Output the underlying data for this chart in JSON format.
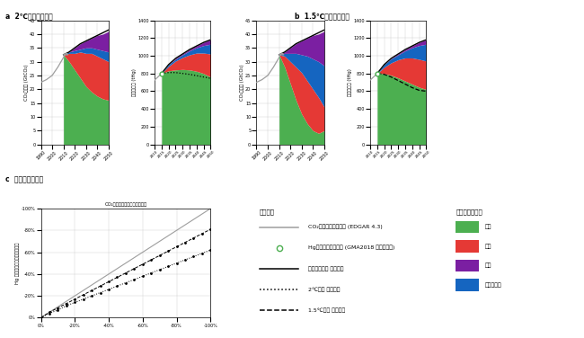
{
  "panel_a_title": "a  2℃目標シナリオ",
  "panel_b_title": "b  1.5℃目標シナリオ",
  "panel_c_title": "c  共便益削減効果",
  "panel_c_subtitle": "CO₂削減率（リファレンス比）",
  "co2_hist_years": [
    1990,
    1995,
    2000,
    2005,
    2010,
    2011,
    2012,
    2013,
    2014
  ],
  "co2_hist_vals": [
    22.5,
    23.5,
    25.0,
    28.0,
    31.5,
    32.5,
    33.0,
    33.0,
    32.5
  ],
  "co2_proj_years": [
    2010,
    2015,
    2020,
    2025,
    2030,
    2035,
    2040,
    2045,
    2050
  ],
  "co2_ref_vals": [
    32.5,
    33.5,
    35.0,
    36.5,
    37.5,
    38.5,
    39.5,
    40.5,
    41.5
  ],
  "co2_2deg_green": [
    32.5,
    30.0,
    27.0,
    24.0,
    21.0,
    19.0,
    17.5,
    16.5,
    16.0
  ],
  "co2_2deg_red": [
    32.5,
    33.0,
    33.0,
    33.5,
    33.0,
    33.0,
    32.0,
    31.0,
    30.0
  ],
  "co2_2deg_blue": [
    32.5,
    33.5,
    34.0,
    34.5,
    35.0,
    35.0,
    34.5,
    34.0,
    33.5
  ],
  "co2_2deg_purple": [
    32.5,
    33.5,
    35.0,
    36.5,
    37.5,
    38.5,
    39.5,
    40.0,
    41.0
  ],
  "co2_15deg_green": [
    32.5,
    28.0,
    22.0,
    16.0,
    11.0,
    7.5,
    5.0,
    4.0,
    5.0
  ],
  "co2_15deg_red": [
    32.5,
    32.0,
    30.0,
    28.0,
    26.0,
    23.0,
    20.0,
    17.0,
    13.5
  ],
  "co2_15deg_blue": [
    32.5,
    33.0,
    33.0,
    33.0,
    32.5,
    32.0,
    31.0,
    30.0,
    28.5
  ],
  "co2_15deg_purple": [
    32.5,
    33.5,
    35.0,
    36.5,
    37.5,
    38.5,
    39.5,
    40.0,
    41.0
  ],
  "hg_hist_years": [
    2010,
    2015
  ],
  "hg_hist_vals": [
    725,
    800
  ],
  "hg_inv_year": 2015,
  "hg_inv_val": 800,
  "hg_proj_years": [
    2015,
    2020,
    2025,
    2030,
    2035,
    2040,
    2045,
    2050
  ],
  "hg_ref_vals": [
    800,
    900,
    970,
    1020,
    1070,
    1110,
    1150,
    1180
  ],
  "hg_2deg_green": [
    800,
    830,
    840,
    845,
    840,
    825,
    800,
    760
  ],
  "hg_2deg_red": [
    800,
    880,
    940,
    980,
    1010,
    1030,
    1030,
    1020
  ],
  "hg_2deg_blue": [
    800,
    900,
    960,
    1010,
    1055,
    1090,
    1115,
    1130
  ],
  "hg_2deg_purple": [
    800,
    900,
    970,
    1020,
    1070,
    1110,
    1150,
    1180
  ],
  "hg_2deg_line": [
    800,
    810,
    810,
    800,
    790,
    775,
    760,
    745
  ],
  "hg_15deg_green": [
    800,
    800,
    780,
    750,
    715,
    680,
    645,
    620
  ],
  "hg_15deg_red": [
    800,
    870,
    920,
    955,
    975,
    975,
    960,
    940
  ],
  "hg_15deg_blue": [
    800,
    900,
    965,
    1010,
    1055,
    1090,
    1115,
    1130
  ],
  "hg_15deg_purple": [
    800,
    900,
    970,
    1020,
    1070,
    1110,
    1150,
    1180
  ],
  "hg_15deg_line": [
    800,
    790,
    760,
    720,
    680,
    640,
    610,
    600
  ],
  "co2_reduction": [
    0,
    -5,
    -10,
    -15,
    -20,
    -25,
    -30,
    -35,
    -40,
    -45,
    -50,
    -55,
    -60,
    -65,
    -70,
    -75,
    -80,
    -85,
    -90,
    -95,
    -100
  ],
  "hg_2deg_reduction": [
    0,
    -4,
    -7,
    -11,
    -14,
    -17,
    -20,
    -23,
    -26,
    -29,
    -32,
    -35,
    -38,
    -41,
    -44,
    -47,
    -50,
    -53,
    -56,
    -59,
    -62
  ],
  "hg_15deg_reduction": [
    0,
    -5,
    -9,
    -13,
    -17,
    -21,
    -25,
    -29,
    -33,
    -37,
    -41,
    -45,
    -49,
    -53,
    -57,
    -61,
    -65,
    -69,
    -73,
    -77,
    -81
  ],
  "color_green": "#4CAF50",
  "color_red": "#E53935",
  "color_blue": "#1565C0",
  "color_purple": "#7B1FA2",
  "color_hist": "#9E9E9E",
  "color_black": "#000000",
  "ylabel_co2": "CO₂排出量 (GtCO₂)",
  "ylabel_hg": "水銀排出量 (tHg)",
  "leg_header1": "排出経路",
  "leg_header2": "主要な削減部門",
  "leg1": "CO₂排出インベントリ (EDGAR 4.3)",
  "leg2": "Hg排出インベントリ (GMA2018 中位推計値)",
  "leg3": "レファレンス シナリオ",
  "leg4": "2℃目標 シナリオ",
  "leg5": "1.5℃目標 シナリオ",
  "sec1": "発電",
  "sec2": "産業",
  "sec3": "運輸",
  "sec4": "家庭・業務",
  "xlabel_c": "CO₂削減率（リファレンス比）",
  "ylabel_c": "Hg 削減率（リファレンス比）"
}
